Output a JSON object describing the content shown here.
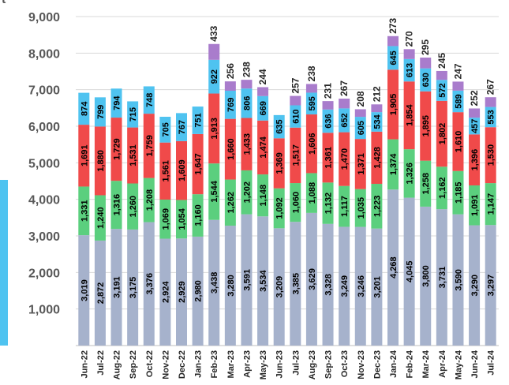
{
  "chart_data": {
    "type": "bar",
    "stacked": true,
    "categories": [
      "Jun-22",
      "Jul-22",
      "Aug-22",
      "Sep-22",
      "Oct-22",
      "Nov-22",
      "Dec-22",
      "Jan-23",
      "Feb-23",
      "Mar-23",
      "Apr-23",
      "May-23",
      "Jun-23",
      "Jul-23",
      "Aug-23",
      "Sep-23",
      "Oct-23",
      "Nov-23",
      "Dec-23",
      "Jan-24",
      "Feb-24",
      "Mar-24",
      "Apr-24",
      "May-24",
      "Jun-24",
      "Jul-24"
    ],
    "tick_labels": [
      "Jun-22",
      "Jul-22",
      "Aug-22",
      "Sep-22",
      "Oct-22",
      "Nov-22",
      "Dec-22",
      "Jan-23",
      "Feb-23",
      "Mar-23",
      "Apr-23",
      "May-23",
      "Jun-23",
      "Jul-23",
      "Aug-23",
      "Sep-23",
      "Oct-23",
      "Nov-23",
      "Dec-23",
      "Jan-24",
      "Feb-24",
      "Mar-24",
      "Apr-24",
      "May-24",
      "Jun-24",
      "Jul-24"
    ],
    "series": [
      {
        "color": "#a6b2cc",
        "values": [
          3019,
          2872,
          3191,
          3175,
          3376,
          2924,
          2929,
          2980,
          3438,
          3280,
          3591,
          3534,
          3209,
          3385,
          3629,
          3328,
          3249,
          3246,
          3201,
          4268,
          4045,
          3800,
          3731,
          3590,
          3290,
          3297
        ]
      },
      {
        "color": "#5bcf7e",
        "values": [
          1331,
          1240,
          1316,
          1260,
          1208,
          1069,
          1054,
          1160,
          1544,
          1262,
          1202,
          1148,
          1092,
          1060,
          1088,
          1132,
          1117,
          1035,
          1223,
          1374,
          1326,
          1258,
          1162,
          1185,
          1091,
          1147
        ]
      },
      {
        "color": "#f04a4a",
        "values": [
          1691,
          1880,
          1729,
          1531,
          1759,
          1561,
          1609,
          1647,
          1913,
          1660,
          1433,
          1474,
          1369,
          1517,
          1606,
          1361,
          1470,
          1371,
          1428,
          1905,
          1854,
          1895,
          1802,
          1610,
          1396,
          1530
        ]
      },
      {
        "color": "#4fc3f0",
        "values": [
          874,
          799,
          794,
          715,
          748,
          705,
          767,
          751,
          922,
          769,
          806,
          669,
          635,
          610,
          595,
          636,
          652,
          605,
          534,
          645,
          613,
          630,
          572,
          589,
          457,
          553
        ]
      },
      {
        "color": "#a97ccc",
        "values": [
          0,
          0,
          0,
          0,
          0,
          0,
          0,
          0,
          433,
          256,
          238,
          244,
          0,
          257,
          238,
          231,
          267,
          208,
          212,
          273,
          270,
          295,
          245,
          247,
          252,
          267
        ]
      }
    ],
    "ylim": [
      0,
      9000
    ],
    "yticks": [
      "1,000",
      "2,000",
      "3,000",
      "4,000",
      "5,000",
      "6,000",
      "7,000",
      "8,000",
      "9,000"
    ],
    "ytick_values": [
      1000,
      2000,
      3000,
      4000,
      5000,
      6000,
      7000,
      8000,
      9000
    ],
    "grid": true,
    "legend": "none",
    "corner_glyph": "t"
  }
}
